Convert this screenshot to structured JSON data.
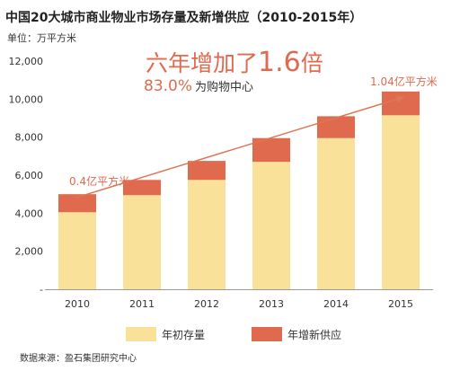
{
  "chart_data": {
    "type": "bar",
    "stacked": true,
    "title": "中国20大城市商业物业市场存量及新增供应（2010-2015年）",
    "unit_label": "单位：万平方米",
    "categories": [
      "2010",
      "2011",
      "2012",
      "2013",
      "2014",
      "2015"
    ],
    "series": [
      {
        "name": "年初存量",
        "color": "#F9E19A",
        "values": [
          4050,
          4950,
          5750,
          6700,
          7950,
          9150
        ]
      },
      {
        "name": "年增新供应",
        "color": "#E06A4E",
        "values": [
          950,
          800,
          1000,
          1250,
          1150,
          1250
        ]
      }
    ],
    "y_ticks": [
      "-",
      "2,000",
      "4,000",
      "6,000",
      "8,000",
      "10,000",
      "12,000"
    ],
    "y_tick_values": [
      0,
      2000,
      4000,
      6000,
      8000,
      10000,
      12000
    ],
    "ylim": [
      0,
      12000
    ],
    "grid": false,
    "legend_position": "bottom",
    "trend_color": "#E07555",
    "annotations": {
      "headline_prefix": "六年增加了",
      "headline_number": "1.6",
      "headline_suffix": "倍",
      "percent": "83.0%",
      "percent_suffix": "为购物中心",
      "label_2010": "0.4亿平方米",
      "label_2015": "1.04亿平方米"
    },
    "source": "数据来源：盈石集团研究中心"
  }
}
